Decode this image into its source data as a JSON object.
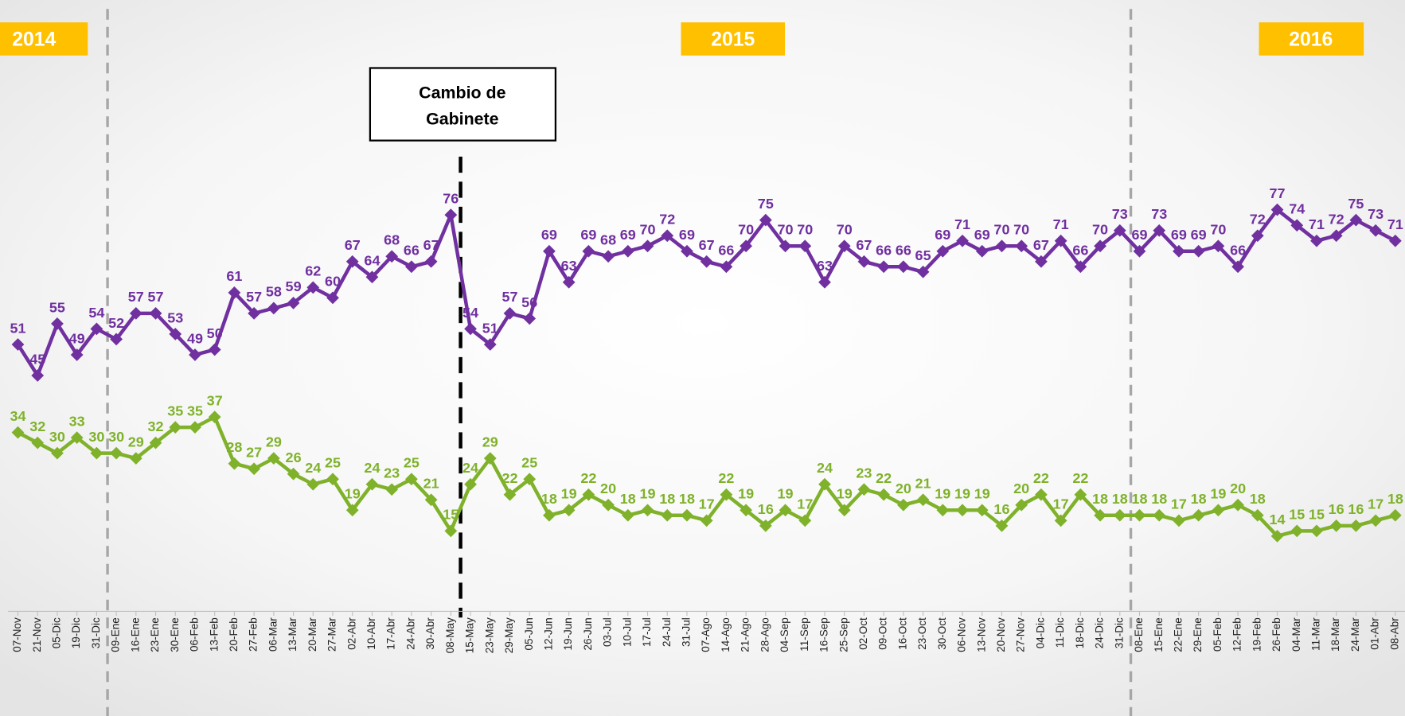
{
  "chart_data": {
    "type": "line",
    "year_labels": [
      "2014",
      "2015",
      "2016"
    ],
    "annotation": [
      "Cambio de",
      "Gabinete"
    ],
    "categories": [
      "07-Nov",
      "21-Nov",
      "05-Dic",
      "19-Dic",
      "31-Dic",
      "09-Ene",
      "16-Ene",
      "23-Ene",
      "30-Ene",
      "06-Feb",
      "13-Feb",
      "20-Feb",
      "27-Feb",
      "06-Mar",
      "13-Mar",
      "20-Mar",
      "27-Mar",
      "02-Abr",
      "10-Abr",
      "17-Abr",
      "24-Abr",
      "30-Abr",
      "08-May",
      "15-May",
      "23-May",
      "29-May",
      "05-Jun",
      "12-Jun",
      "19-Jun",
      "26-Jun",
      "03-Jul",
      "10-Jul",
      "17-Jul",
      "24-Jul",
      "31-Jul",
      "07-Ago",
      "14-Ago",
      "21-Ago",
      "28-Ago",
      "04-Sep",
      "11-Sep",
      "16-Sep",
      "25-Sep",
      "02-Oct",
      "09-Oct",
      "16-Oct",
      "23-Oct",
      "30-Oct",
      "06-Nov",
      "13-Nov",
      "20-Nov",
      "27-Nov",
      "04-Dic",
      "11-Dic",
      "18-Dic",
      "24-Dic",
      "31-Dic",
      "08-Ene",
      "15-Ene",
      "22-Ene",
      "29-Ene",
      "05-Feb",
      "12-Feb",
      "19-Feb",
      "26-Feb",
      "04-Mar",
      "11-Mar",
      "18-Mar",
      "24-Mar",
      "01-Abr",
      "08-Abr"
    ],
    "series": [
      {
        "color": "#7030a0",
        "values": [
          51,
          45,
          55,
          49,
          54,
          52,
          57,
          57,
          53,
          49,
          50,
          61,
          57,
          58,
          59,
          62,
          60,
          67,
          64,
          68,
          66,
          67,
          76,
          54,
          51,
          57,
          56,
          69,
          63,
          69,
          68,
          69,
          70,
          72,
          69,
          67,
          66,
          70,
          75,
          70,
          70,
          63,
          70,
          67,
          66,
          66,
          65,
          69,
          71,
          69,
          70,
          70,
          67,
          71,
          66,
          70,
          73,
          69,
          73,
          69,
          69,
          70,
          66,
          72,
          77,
          74,
          71,
          72,
          75,
          73,
          71
        ]
      },
      {
        "color": "#7fb22a",
        "values": [
          34,
          32,
          30,
          33,
          30,
          30,
          29,
          32,
          35,
          35,
          37,
          28,
          27,
          29,
          26,
          24,
          25,
          19,
          24,
          23,
          25,
          21,
          15,
          24,
          29,
          22,
          25,
          18,
          19,
          22,
          20,
          18,
          19,
          18,
          18,
          17,
          22,
          19,
          16,
          19,
          17,
          24,
          19,
          23,
          22,
          20,
          21,
          19,
          19,
          19,
          16,
          20,
          22,
          17,
          22,
          18,
          18,
          18,
          18,
          17,
          18,
          19,
          20,
          18,
          14,
          15,
          15,
          16,
          16,
          17,
          18
        ]
      }
    ],
    "ylim": [
      0,
      120
    ]
  }
}
